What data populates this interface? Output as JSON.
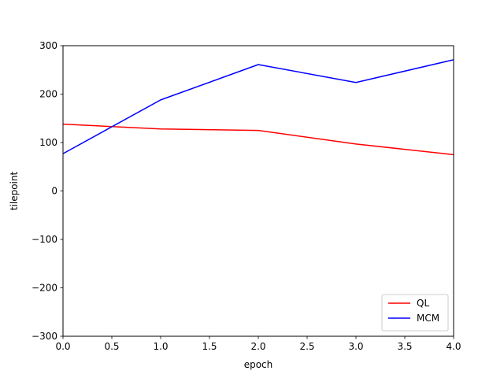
{
  "chart_data": {
    "type": "line",
    "title": "",
    "xlabel": "epoch",
    "ylabel": "tilepoint",
    "xlim": [
      0,
      4
    ],
    "ylim": [
      -300,
      300
    ],
    "xticks": [
      "0.0",
      "0.5",
      "1.0",
      "1.5",
      "2.0",
      "2.5",
      "3.0",
      "3.5",
      "4.0"
    ],
    "yticks": [
      "300",
      "200",
      "100",
      "0",
      "−100",
      "−200",
      "−300"
    ],
    "grid": false,
    "legend_position": "lower-right",
    "x": [
      0,
      1,
      2,
      3,
      4
    ],
    "series": [
      {
        "name": "QL",
        "color": "#ff0000",
        "values": [
          138,
          128,
          125,
          97,
          75
        ]
      },
      {
        "name": "MCM",
        "color": "#0000ff",
        "values": [
          77,
          188,
          261,
          224,
          271
        ]
      }
    ]
  }
}
